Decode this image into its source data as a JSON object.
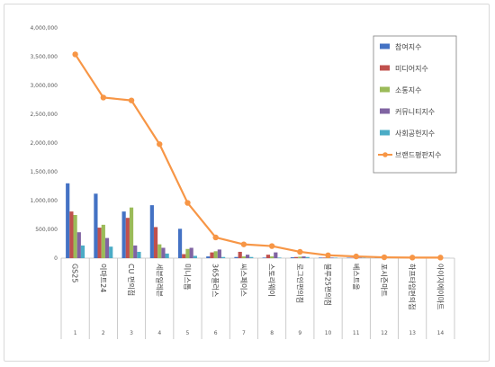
{
  "chart_data": {
    "type": "bar",
    "title": "",
    "xlabel": "",
    "ylabel": "",
    "ylim": [
      0,
      4000000
    ],
    "yticks": [
      "0",
      "500,000",
      "1,000,000",
      "1,500,000",
      "2,000,000",
      "2,500,000",
      "3,000,000",
      "3,500,000",
      "4,000,000"
    ],
    "grid": false,
    "legend_position": "right",
    "ranks": [
      "1",
      "2",
      "3",
      "4",
      "5",
      "6",
      "7",
      "8",
      "9",
      "10",
      "11",
      "12",
      "13",
      "14"
    ],
    "categories": [
      "GS25",
      "이마트24",
      "CU 편의점",
      "세븐일레븐",
      "미니스톱",
      "365플러스",
      "씨스페이스",
      "스토리웨이",
      "로그인편의점",
      "블루25편의점",
      "베스트올",
      "포시즌마트",
      "하프타임편의점",
      "아이지에이마트"
    ],
    "series": [
      {
        "name": "참여지수",
        "type": "bar",
        "color": "#4472c4",
        "values": [
          1300000,
          1120000,
          810000,
          920000,
          510000,
          30000,
          20000,
          10000,
          15000,
          10000,
          8000,
          5000,
          5000,
          3000
        ]
      },
      {
        "name": "미디어지수",
        "type": "bar",
        "color": "#c0504d",
        "values": [
          810000,
          530000,
          700000,
          540000,
          70000,
          100000,
          110000,
          60000,
          20000,
          10000,
          8000,
          5000,
          5000,
          5000
        ]
      },
      {
        "name": "소통지수",
        "type": "bar",
        "color": "#9bbb59",
        "values": [
          750000,
          580000,
          880000,
          240000,
          160000,
          120000,
          30000,
          30000,
          25000,
          15000,
          10000,
          5000,
          4000,
          3000
        ]
      },
      {
        "name": "커뮤니티지수",
        "type": "bar",
        "color": "#8064a2",
        "values": [
          450000,
          350000,
          220000,
          180000,
          180000,
          150000,
          60000,
          100000,
          30000,
          10000,
          8000,
          5000,
          3000,
          2000
        ]
      },
      {
        "name": "사회공헌지수",
        "type": "bar",
        "color": "#4bacc6",
        "values": [
          220000,
          200000,
          110000,
          80000,
          40000,
          20000,
          20000,
          10000,
          20000,
          8000,
          5000,
          3000,
          2000,
          2000
        ]
      },
      {
        "name": "브랜드평판지수",
        "type": "line",
        "color": "#f79646",
        "values": [
          3540000,
          2790000,
          2740000,
          1980000,
          960000,
          360000,
          240000,
          210000,
          110000,
          50000,
          30000,
          15000,
          10000,
          10000
        ]
      }
    ]
  }
}
